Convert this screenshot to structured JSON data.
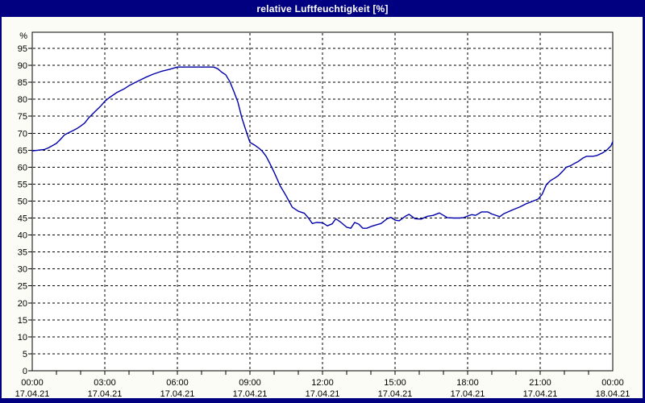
{
  "window": {
    "title": "relative Luftfeuchtigkeit [%]"
  },
  "colors": {
    "titlebar_bg": "#000080",
    "titlebar_text": "#ffffff",
    "frame_border": "#000080",
    "curve": "#0000aa",
    "grid": "#000000",
    "axis_text": "#000000",
    "plot_bg": "#ffffff",
    "page_bg": "#fcfcf6"
  },
  "chart_data": {
    "type": "line",
    "title": "relative Luftfeuchtigkeit [%]",
    "xlabel": "",
    "ylabel": "%",
    "ylim": [
      0,
      100
    ],
    "xlim_hours": [
      0,
      24
    ],
    "y_tick_step": 5,
    "y_ticks": [
      0,
      5,
      10,
      15,
      20,
      25,
      30,
      35,
      40,
      45,
      50,
      55,
      60,
      65,
      70,
      75,
      80,
      85,
      90,
      95
    ],
    "grid": "black dashed; horizontal every 5 %, vertical every 3 h, minor x-axis ticks hourly",
    "legend": "none",
    "x_ticks": [
      {
        "time": "00:00",
        "date": "17.04.21",
        "hour": 0
      },
      {
        "time": "03:00",
        "date": "17.04.21",
        "hour": 3
      },
      {
        "time": "06:00",
        "date": "17.04.21",
        "hour": 6
      },
      {
        "time": "09:00",
        "date": "17.04.21",
        "hour": 9
      },
      {
        "time": "12:00",
        "date": "17.04.21",
        "hour": 12
      },
      {
        "time": "15:00",
        "date": "17.04.21",
        "hour": 15
      },
      {
        "time": "18:00",
        "date": "17.04.21",
        "hour": 18
      },
      {
        "time": "21:00",
        "date": "17.04.21",
        "hour": 21
      },
      {
        "time": "00:00",
        "date": "18.04.21",
        "hour": 24
      }
    ],
    "series": [
      {
        "name": "relative Luftfeuchtigkeit",
        "unit": "%",
        "points_hour_value": [
          [
            0.0,
            64.8
          ],
          [
            0.25,
            65.0
          ],
          [
            0.5,
            65.2
          ],
          [
            0.67,
            65.7
          ],
          [
            0.83,
            66.3
          ],
          [
            1.0,
            67.0
          ],
          [
            1.17,
            68.2
          ],
          [
            1.33,
            69.5
          ],
          [
            1.5,
            70.1
          ],
          [
            1.67,
            70.7
          ],
          [
            1.83,
            71.3
          ],
          [
            2.0,
            72.1
          ],
          [
            2.17,
            73.0
          ],
          [
            2.33,
            74.5
          ],
          [
            2.5,
            75.7
          ],
          [
            2.67,
            76.9
          ],
          [
            2.83,
            78.0
          ],
          [
            3.0,
            79.4
          ],
          [
            3.17,
            80.4
          ],
          [
            3.5,
            82.0
          ],
          [
            3.83,
            83.2
          ],
          [
            4.0,
            84.0
          ],
          [
            4.33,
            85.2
          ],
          [
            4.67,
            86.4
          ],
          [
            5.0,
            87.4
          ],
          [
            5.33,
            88.2
          ],
          [
            5.67,
            88.8
          ],
          [
            6.0,
            89.5
          ],
          [
            6.5,
            89.5
          ],
          [
            7.0,
            89.5
          ],
          [
            7.5,
            89.5
          ],
          [
            7.67,
            89.0
          ],
          [
            7.83,
            88.0
          ],
          [
            8.0,
            87.2
          ],
          [
            8.17,
            85.2
          ],
          [
            8.33,
            82.4
          ],
          [
            8.5,
            79.2
          ],
          [
            8.67,
            74.4
          ],
          [
            8.83,
            70.9
          ],
          [
            9.0,
            67.3
          ],
          [
            9.17,
            66.6
          ],
          [
            9.33,
            65.8
          ],
          [
            9.5,
            64.8
          ],
          [
            9.67,
            63.2
          ],
          [
            9.83,
            61.0
          ],
          [
            10.0,
            58.5
          ],
          [
            10.25,
            54.5
          ],
          [
            10.5,
            51.5
          ],
          [
            10.75,
            48.2
          ],
          [
            11.0,
            47.0
          ],
          [
            11.25,
            46.4
          ],
          [
            11.42,
            45.0
          ],
          [
            11.58,
            43.4
          ],
          [
            11.75,
            43.7
          ],
          [
            12.0,
            43.6
          ],
          [
            12.2,
            42.7
          ],
          [
            12.4,
            43.3
          ],
          [
            12.55,
            44.8
          ],
          [
            12.75,
            43.8
          ],
          [
            13.0,
            42.3
          ],
          [
            13.17,
            42.0
          ],
          [
            13.33,
            43.7
          ],
          [
            13.5,
            43.2
          ],
          [
            13.67,
            42.0
          ],
          [
            13.83,
            42.0
          ],
          [
            14.0,
            42.5
          ],
          [
            14.17,
            42.9
          ],
          [
            14.42,
            43.4
          ],
          [
            14.67,
            44.8
          ],
          [
            14.83,
            45.2
          ],
          [
            15.0,
            44.4
          ],
          [
            15.17,
            44.2
          ],
          [
            15.42,
            45.5
          ],
          [
            15.58,
            46.1
          ],
          [
            15.83,
            44.8
          ],
          [
            16.08,
            44.7
          ],
          [
            16.33,
            45.5
          ],
          [
            16.58,
            45.8
          ],
          [
            16.83,
            46.5
          ],
          [
            17.0,
            45.8
          ],
          [
            17.17,
            45.1
          ],
          [
            17.42,
            45.0
          ],
          [
            17.67,
            45.0
          ],
          [
            17.83,
            45.1
          ],
          [
            18.0,
            45.6
          ],
          [
            18.17,
            46.0
          ],
          [
            18.33,
            45.8
          ],
          [
            18.58,
            46.8
          ],
          [
            18.83,
            46.8
          ],
          [
            19.0,
            46.2
          ],
          [
            19.33,
            45.4
          ],
          [
            19.5,
            46.3
          ],
          [
            19.67,
            46.8
          ],
          [
            19.92,
            47.6
          ],
          [
            20.17,
            48.3
          ],
          [
            20.42,
            49.2
          ],
          [
            20.67,
            49.9
          ],
          [
            20.92,
            50.6
          ],
          [
            21.08,
            52.0
          ],
          [
            21.25,
            54.8
          ],
          [
            21.42,
            56.0
          ],
          [
            21.58,
            56.7
          ],
          [
            21.75,
            57.5
          ],
          [
            21.92,
            58.7
          ],
          [
            22.08,
            60.0
          ],
          [
            22.25,
            60.4
          ],
          [
            22.42,
            61.1
          ],
          [
            22.58,
            61.7
          ],
          [
            22.75,
            62.6
          ],
          [
            22.92,
            63.2
          ],
          [
            23.17,
            63.2
          ],
          [
            23.33,
            63.4
          ],
          [
            23.58,
            64.2
          ],
          [
            23.75,
            65.0
          ],
          [
            23.92,
            66.2
          ],
          [
            24.0,
            67.5
          ]
        ]
      }
    ]
  }
}
